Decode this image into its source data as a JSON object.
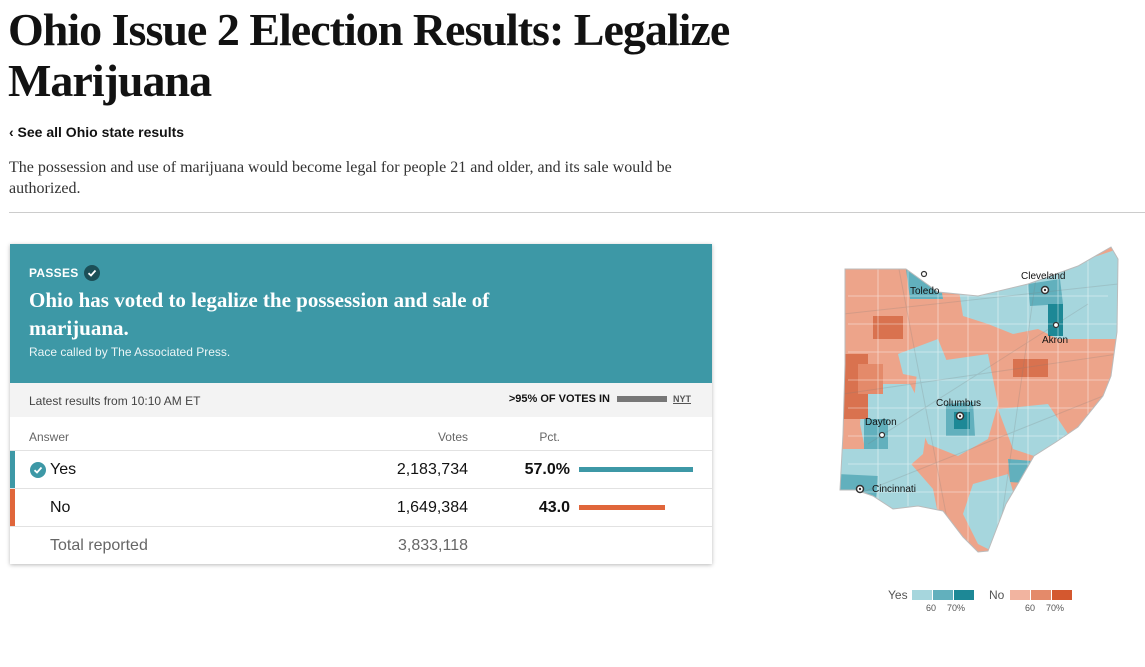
{
  "page": {
    "title": "Ohio Issue 2 Election Results: Legalize Marijuana",
    "back_link": "‹ See all Ohio state results",
    "description": "The possession and use of marijuana would become legal for people 21 and older, and its sale would be authorized."
  },
  "result": {
    "status": "PASSES",
    "headline": "Ohio has voted to legalize the possession and sale of marijuana.",
    "called_by": "Race called by The Associated Press.",
    "latest": "Latest results from 10:10 AM ET",
    "reporting": ">95% OF VOTES IN",
    "reporting_source": "NYT",
    "reporting_fraction": 0.95
  },
  "table": {
    "headers": {
      "answer": "Answer",
      "votes": "Votes",
      "pct": "Pct."
    },
    "rows": [
      {
        "answer": "Yes",
        "votes": "2,183,734",
        "pct": "57.0%",
        "share": 0.57,
        "winner": true,
        "color": "#3d98a6"
      },
      {
        "answer": "No",
        "votes": "1,649,384",
        "pct": "43.0",
        "share": 0.43,
        "winner": false,
        "color": "#e0663b"
      }
    ],
    "total": {
      "label": "Total reported",
      "votes": "3,833,118"
    }
  },
  "map": {
    "cities": [
      "Toledo",
      "Cleveland",
      "Akron",
      "Columbus",
      "Dayton",
      "Cincinnati"
    ]
  },
  "legend": {
    "yes_label": "Yes",
    "no_label": "No",
    "tick_60": "60",
    "tick_70": "70%",
    "yes_colors": [
      "#a6d6dd",
      "#62b0bd",
      "#1d8896"
    ],
    "no_colors": [
      "#f2b4a0",
      "#e48a6a",
      "#d4582f"
    ]
  }
}
